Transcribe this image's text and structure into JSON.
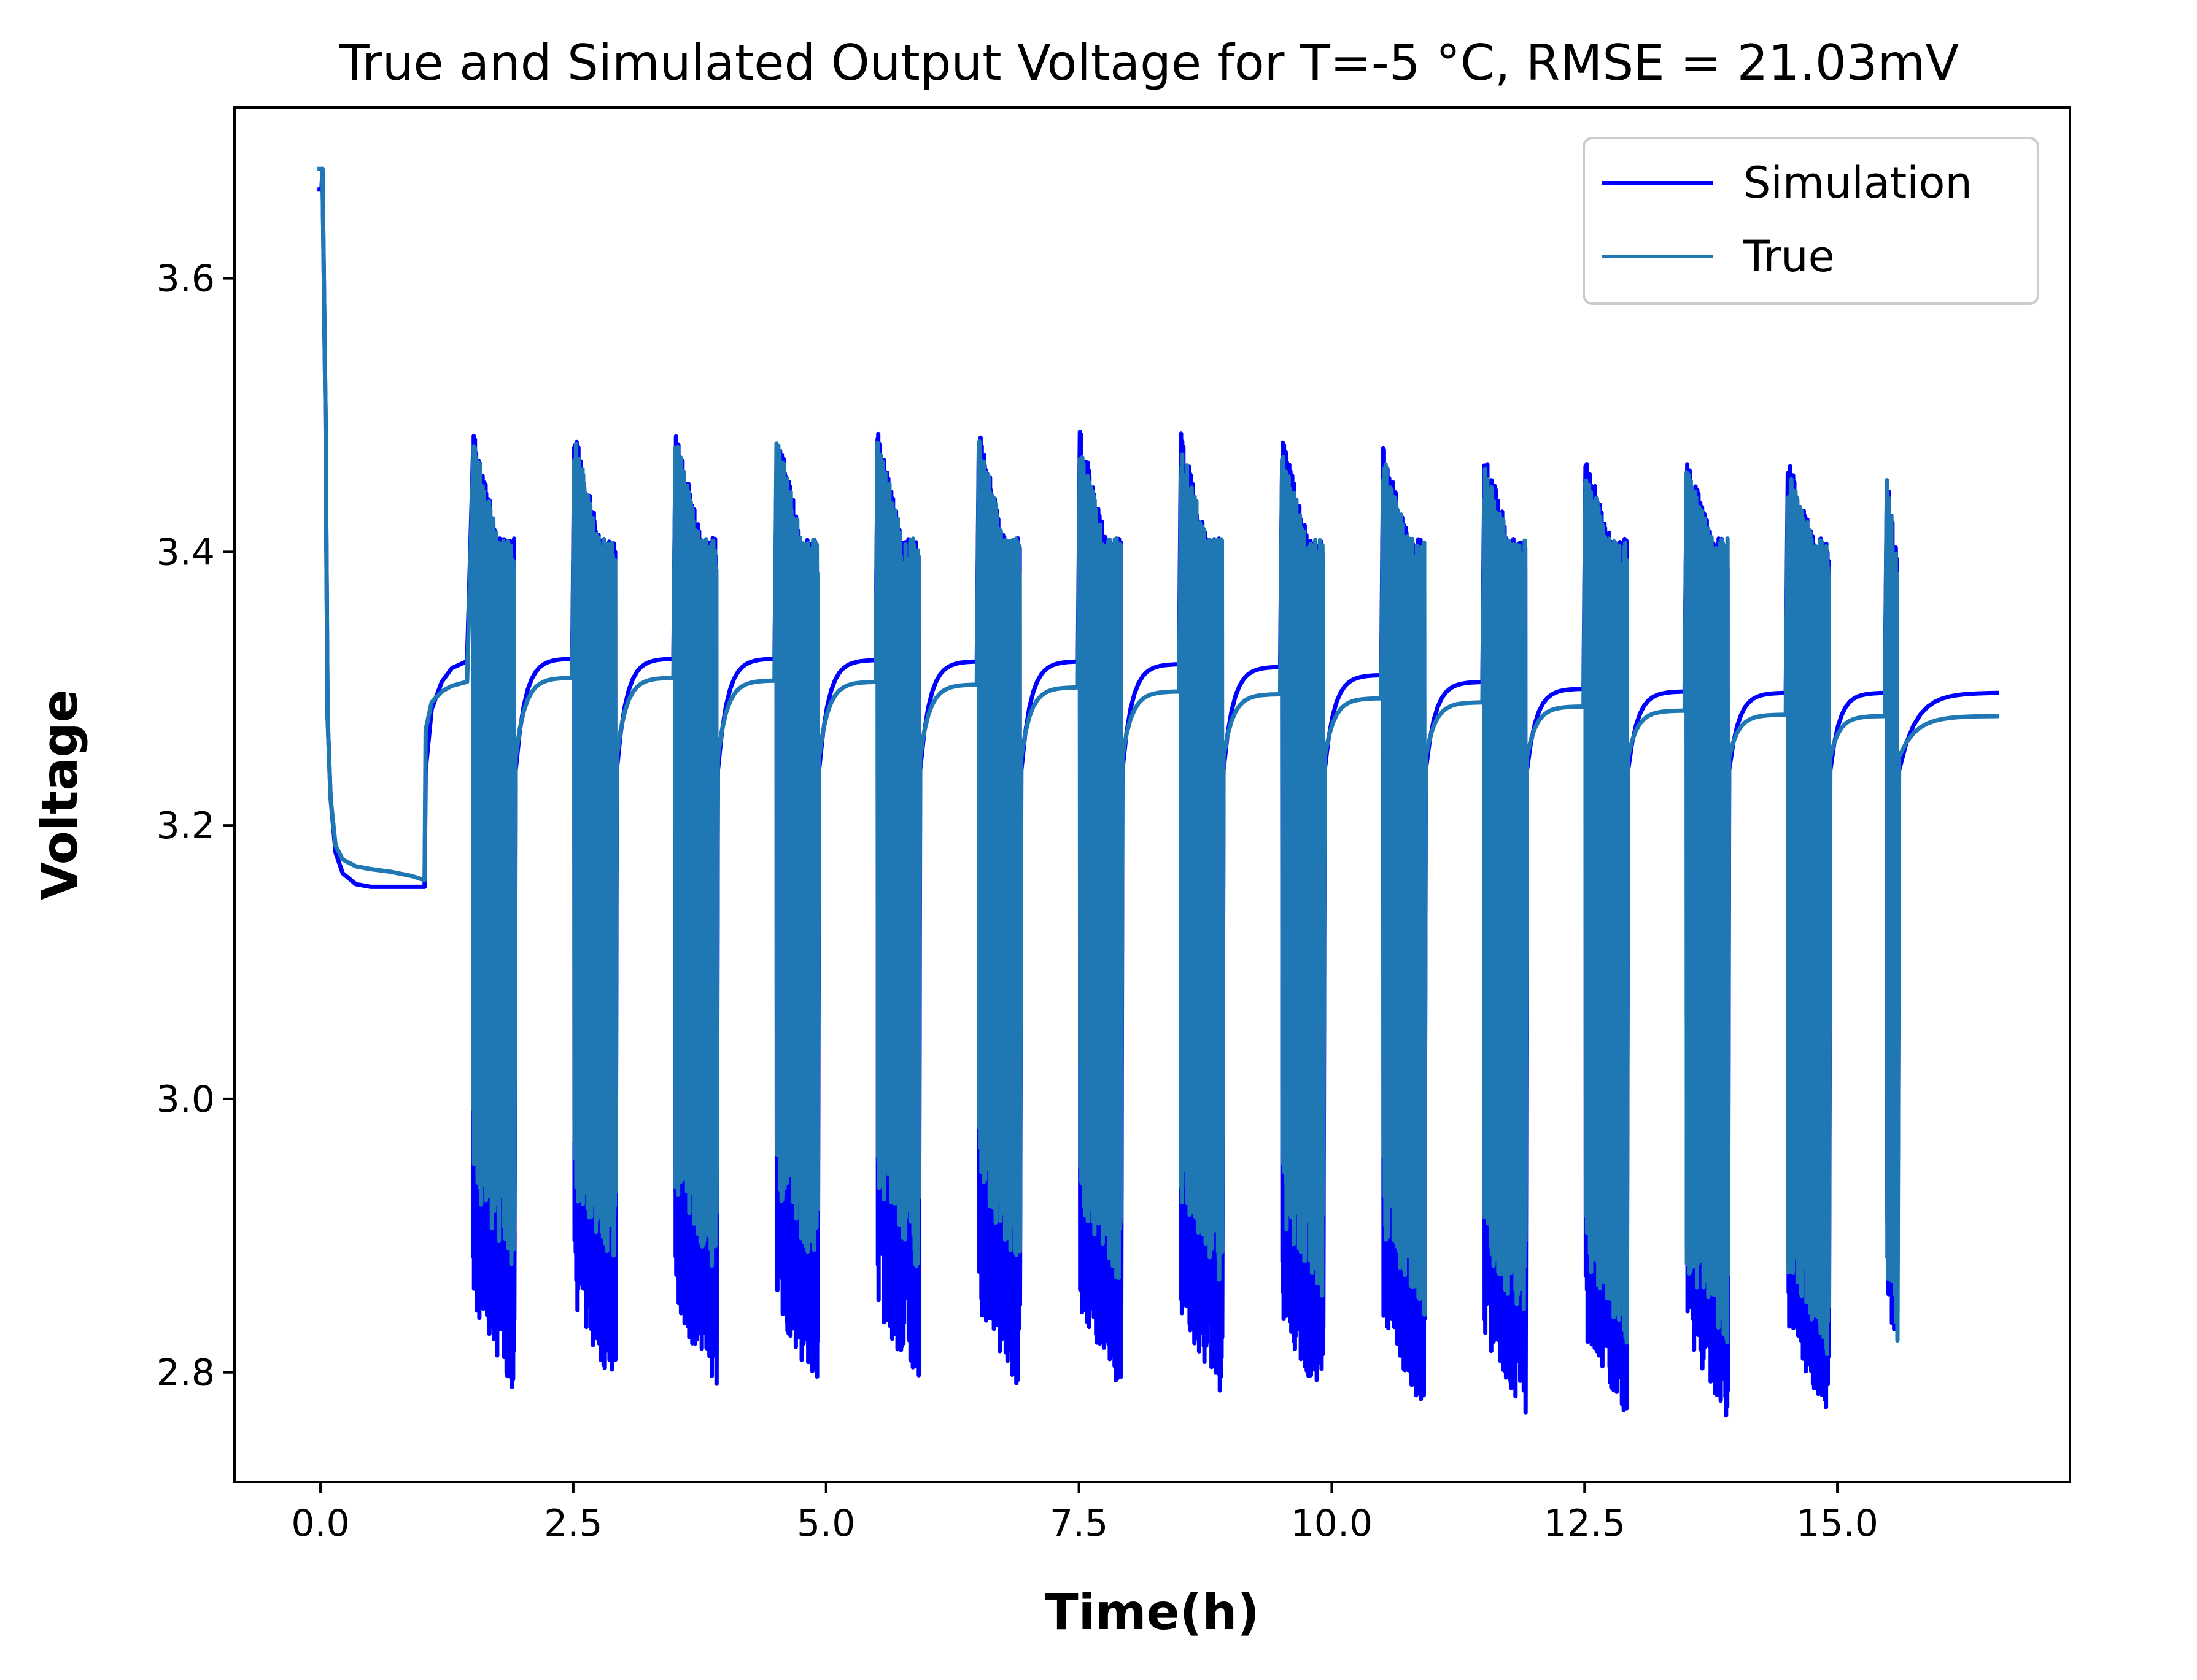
{
  "chart_data": {
    "type": "line",
    "title": "True and Simulated Output Voltage for T=-5 °C, RMSE = 21.03mV",
    "xlabel": "Time(h)",
    "ylabel": "Voltage",
    "xlim": [
      -0.85,
      17.3
    ],
    "ylim": [
      2.72,
      3.725
    ],
    "x_ticks": [
      0.0,
      2.5,
      5.0,
      7.5,
      10.0,
      12.5,
      15.0
    ],
    "x_tick_labels": [
      "0.0",
      "2.5",
      "5.0",
      "7.5",
      "10.0",
      "12.5",
      "15.0"
    ],
    "y_ticks": [
      2.8,
      3.0,
      3.2,
      3.4,
      3.6
    ],
    "y_tick_labels": [
      "2.8",
      "3.0",
      "3.2",
      "3.4",
      "3.6"
    ],
    "grid": false,
    "legend_position": "top-right",
    "colors": {
      "simulation": "#0000ff",
      "true": "#1f77b4"
    },
    "profile": {
      "initial_rest": {
        "x": [
          -0.03,
          0.01,
          0.02,
          0.05,
          0.07,
          0.1,
          0.15,
          0.22,
          0.35,
          0.5,
          0.7,
          0.9,
          1.03
        ],
        "simulation": [
          3.665,
          3.665,
          3.68,
          3.5,
          3.28,
          3.22,
          3.18,
          3.165,
          3.157,
          3.155,
          3.155,
          3.155,
          3.155
        ],
        "true": [
          3.68,
          3.68,
          3.68,
          3.5,
          3.28,
          3.22,
          3.185,
          3.175,
          3.17,
          3.168,
          3.166,
          3.163,
          3.16
        ]
      },
      "first_relaxation": {
        "x": [
          1.03,
          1.04,
          1.1,
          1.2,
          1.3,
          1.45
        ],
        "simulation": [
          3.155,
          3.24,
          3.285,
          3.305,
          3.315,
          3.32
        ],
        "true": [
          3.16,
          3.27,
          3.29,
          3.298,
          3.302,
          3.305
        ]
      },
      "pulse_blocks": [
        {
          "start": 1.51,
          "end": 1.92,
          "sim_top": 3.49,
          "sim_bottom": 2.785,
          "true_top": 3.485,
          "true_bottom": 2.87,
          "sim_rest": 3.322,
          "true_rest": 3.308
        },
        {
          "start": 2.51,
          "end": 2.92,
          "sim_top": 3.49,
          "sim_bottom": 2.785,
          "true_top": 3.485,
          "true_bottom": 2.87,
          "sim_rest": 3.322,
          "true_rest": 3.308
        },
        {
          "start": 3.51,
          "end": 3.92,
          "sim_top": 3.49,
          "sim_bottom": 2.785,
          "true_top": 3.485,
          "true_bottom": 2.87,
          "sim_rest": 3.322,
          "true_rest": 3.306
        },
        {
          "start": 4.51,
          "end": 4.92,
          "sim_top": 3.49,
          "sim_bottom": 2.785,
          "true_top": 3.485,
          "true_bottom": 2.87,
          "sim_rest": 3.321,
          "true_rest": 3.305
        },
        {
          "start": 5.51,
          "end": 5.92,
          "sim_top": 3.49,
          "sim_bottom": 2.785,
          "true_top": 3.485,
          "true_bottom": 2.87,
          "sim_rest": 3.32,
          "true_rest": 3.303
        },
        {
          "start": 6.51,
          "end": 6.92,
          "sim_top": 3.49,
          "sim_bottom": 2.785,
          "true_top": 3.485,
          "true_bottom": 2.87,
          "sim_rest": 3.32,
          "true_rest": 3.301
        },
        {
          "start": 7.51,
          "end": 7.92,
          "sim_top": 3.49,
          "sim_bottom": 2.785,
          "true_top": 3.48,
          "true_bottom": 2.86,
          "sim_rest": 3.318,
          "true_rest": 3.298
        },
        {
          "start": 8.51,
          "end": 8.92,
          "sim_top": 3.49,
          "sim_bottom": 2.78,
          "true_top": 3.48,
          "true_bottom": 2.86,
          "sim_rest": 3.316,
          "true_rest": 3.296
        },
        {
          "start": 9.51,
          "end": 9.92,
          "sim_top": 3.485,
          "sim_bottom": 2.775,
          "true_top": 3.475,
          "true_bottom": 2.85,
          "sim_rest": 3.31,
          "true_rest": 3.293
        },
        {
          "start": 10.51,
          "end": 10.92,
          "sim_top": 3.48,
          "sim_bottom": 2.77,
          "true_top": 3.47,
          "true_bottom": 2.84,
          "sim_rest": 3.305,
          "true_rest": 3.29
        },
        {
          "start": 11.51,
          "end": 11.92,
          "sim_top": 3.475,
          "sim_bottom": 2.765,
          "true_top": 3.465,
          "true_bottom": 2.83,
          "sim_rest": 3.3,
          "true_rest": 3.287
        },
        {
          "start": 12.51,
          "end": 12.92,
          "sim_top": 3.47,
          "sim_bottom": 2.765,
          "true_top": 3.46,
          "true_bottom": 2.82,
          "sim_rest": 3.298,
          "true_rest": 3.284
        },
        {
          "start": 13.51,
          "end": 13.92,
          "sim_top": 3.47,
          "sim_bottom": 2.765,
          "true_top": 3.46,
          "true_bottom": 2.815,
          "sim_rest": 3.297,
          "true_rest": 3.281
        },
        {
          "start": 14.51,
          "end": 14.92,
          "sim_top": 3.47,
          "sim_bottom": 2.765,
          "true_top": 3.46,
          "true_bottom": 2.81,
          "sim_rest": 3.297,
          "true_rest": 3.28
        },
        {
          "start": 15.49,
          "end": 15.6,
          "sim_top": 3.47,
          "sim_bottom": 2.8,
          "true_top": 3.46,
          "true_bottom": 2.8,
          "sim_rest": 3.297,
          "true_rest": 3.28
        }
      ],
      "end_x": 16.6
    },
    "series": [
      {
        "name": "Simulation",
        "color": "#0000ff"
      },
      {
        "name": "True",
        "color": "#1f77b4"
      }
    ]
  }
}
